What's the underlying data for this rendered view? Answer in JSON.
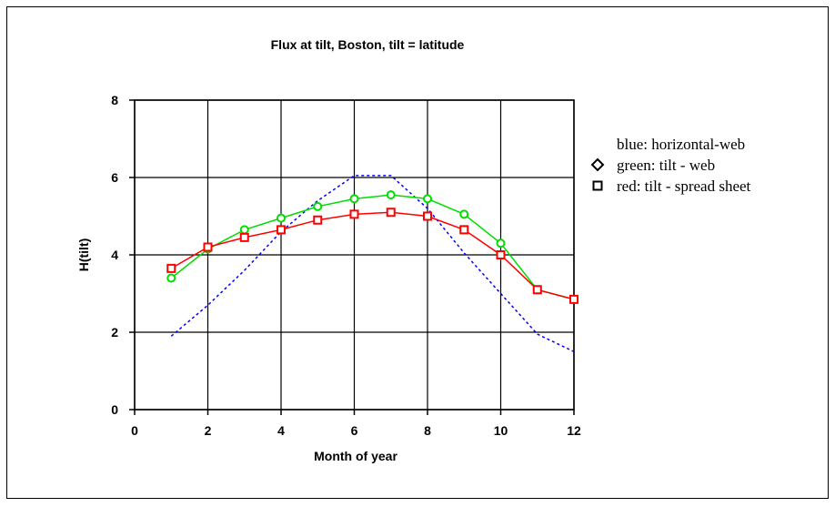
{
  "chart_data": {
    "type": "line",
    "title": "Flux at tilt, Boston, tilt = latitude",
    "xlabel": "Month of year",
    "ylabel": "H(tilt)",
    "xlim": [
      0,
      12
    ],
    "ylim": [
      0,
      8
    ],
    "x_ticks": [
      0,
      2,
      4,
      6,
      8,
      10,
      12
    ],
    "y_ticks": [
      0,
      2,
      4,
      6,
      8
    ],
    "grid": true,
    "x": [
      1,
      2,
      3,
      4,
      5,
      6,
      7,
      8,
      9,
      10,
      11,
      12
    ],
    "series": [
      {
        "name": "blue: horizontal-web",
        "color": "#0000ff",
        "style": "dotted",
        "marker": "none",
        "values": [
          1.9,
          2.7,
          3.6,
          4.6,
          5.4,
          6.05,
          6.05,
          5.2,
          4.05,
          3.0,
          1.95,
          1.5
        ]
      },
      {
        "name": "green: tilt - web",
        "color": "#00dd00",
        "style": "solid",
        "marker": "circle",
        "values": [
          3.4,
          4.15,
          4.65,
          4.95,
          5.25,
          5.45,
          5.55,
          5.45,
          5.05,
          4.3,
          3.1,
          2.85
        ]
      },
      {
        "name": "red: tilt - spread sheet",
        "color": "#ff0000",
        "style": "solid",
        "marker": "square",
        "values": [
          3.65,
          4.2,
          4.45,
          4.65,
          4.9,
          5.05,
          5.1,
          5.0,
          4.65,
          4.0,
          3.1,
          2.85
        ]
      }
    ],
    "legend": {
      "placement": "right",
      "entries": [
        {
          "text": "blue: horizontal-web",
          "symbol": "none"
        },
        {
          "text": "green: tilt - web",
          "symbol": "diamond"
        },
        {
          "text": "red: tilt - spread sheet",
          "symbol": "square"
        }
      ]
    }
  }
}
